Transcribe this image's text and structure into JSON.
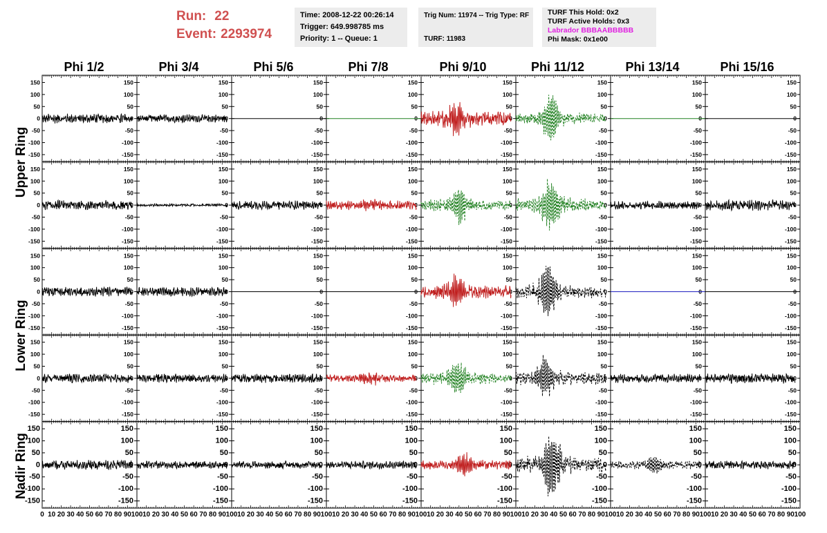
{
  "header": {
    "run_label": "Run:",
    "run_value": "22",
    "event_label": "Event:",
    "event_value": "2293974"
  },
  "info_boxes": [
    {
      "lines": [
        "Time: 2008-12-22 00:26:14",
        "Trigger: 649.998785 ms",
        "Priority: 1 -- Queue: 1"
      ]
    },
    {
      "lines": [
        "Trig Num: 11974 -- Trig Type: RF",
        "",
        "TURF: 11983"
      ]
    },
    {
      "lines": [
        "TURF This Hold: 0x2",
        "TURF Active Holds: 0x3",
        "Labrador BBBAABBBBB",
        "Phi Mask: 0x1e00"
      ]
    }
  ],
  "colors": {
    "title": "#d05050",
    "black": "#000000",
    "red": "#c02020",
    "green": "#208020",
    "blue": "#2020c0",
    "magenta": "#e020e0",
    "box_bg": "#ececec"
  },
  "columns": [
    "Phi 1/2",
    "Phi 3/4",
    "Phi 5/6",
    "Phi 7/8",
    "Phi 9/10",
    "Phi 11/12",
    "Phi 13/14",
    "Phi 15/16"
  ],
  "ring_labels": [
    {
      "text": "Upper Ring",
      "rows": [
        0,
        1
      ]
    },
    {
      "text": "Lower Ring",
      "rows": [
        2,
        3
      ]
    },
    {
      "text": "Nadir Ring",
      "rows": [
        4
      ]
    }
  ],
  "chart_data": {
    "type": "line",
    "xlabel": "",
    "ylabel": "",
    "xlim": [
      0,
      100
    ],
    "ylim": [
      -180,
      180
    ],
    "y_ticks": [
      150,
      100,
      50,
      0,
      -50,
      -100,
      -150
    ],
    "x_ticks": [
      0,
      10,
      20,
      30,
      40,
      50,
      60,
      70,
      80,
      90,
      100
    ],
    "x_tick_labels": [
      "0",
      "10",
      "20",
      "30",
      "40",
      "50",
      "60",
      "70",
      "80",
      "90",
      "100"
    ],
    "panels": [
      [
        {
          "color": "black",
          "style": "solid",
          "amp": 14,
          "flat": false
        },
        {
          "color": "black",
          "style": "solid",
          "amp": 12,
          "flat": false
        },
        {
          "color": "black",
          "style": "solid",
          "amp": 0,
          "flat": true
        },
        {
          "color": "green",
          "style": "solid",
          "amp": 0,
          "flat": true
        },
        {
          "color": "red",
          "style": "solid",
          "amp": 22,
          "pulse": 55,
          "center": 38,
          "flat": false
        },
        {
          "color": "green",
          "style": "dashed",
          "amp": 14,
          "pulse": 95,
          "center": 37,
          "flat": false
        },
        {
          "color": "green",
          "style": "solid",
          "amp": 0,
          "flat": true
        },
        {
          "color": "black",
          "style": "solid",
          "amp": 0,
          "flat": true
        }
      ],
      [
        {
          "color": "black",
          "style": "solid",
          "amp": 14,
          "flat": false
        },
        {
          "color": "black",
          "style": "solid",
          "amp": 4,
          "flat": false
        },
        {
          "color": "black",
          "style": "solid",
          "amp": 13,
          "flat": false
        },
        {
          "color": "red",
          "style": "solid",
          "amp": 13,
          "pulse": 12,
          "center": 45,
          "flat": false
        },
        {
          "color": "green",
          "style": "dashed",
          "amp": 15,
          "pulse": 65,
          "center": 40,
          "flat": false
        },
        {
          "color": "green",
          "style": "dashed",
          "amp": 18,
          "pulse": 95,
          "center": 37,
          "flat": false
        },
        {
          "color": "black",
          "style": "solid",
          "amp": 12,
          "flat": false
        },
        {
          "color": "black",
          "style": "solid",
          "amp": 16,
          "flat": false
        }
      ],
      [
        {
          "color": "black",
          "style": "solid",
          "amp": 14,
          "flat": false
        },
        {
          "color": "black",
          "style": "solid",
          "amp": 13,
          "flat": false
        },
        {
          "color": "black",
          "style": "solid",
          "amp": 0,
          "flat": true
        },
        {
          "color": "black",
          "style": "solid",
          "amp": 0,
          "flat": true
        },
        {
          "color": "red",
          "style": "solid",
          "amp": 18,
          "pulse": 55,
          "center": 38,
          "flat": false
        },
        {
          "color": "black",
          "style": "dashed",
          "amp": 18,
          "pulse": 95,
          "center": 34,
          "flat": false
        },
        {
          "color": "blue",
          "style": "solid",
          "amp": 0,
          "flat": true
        },
        {
          "color": "black",
          "style": "solid",
          "amp": 0,
          "flat": true
        }
      ],
      [
        {
          "color": "black",
          "style": "solid",
          "amp": 13,
          "flat": false
        },
        {
          "color": "black",
          "style": "solid",
          "amp": 13,
          "flat": false
        },
        {
          "color": "black",
          "style": "solid",
          "amp": 13,
          "flat": false
        },
        {
          "color": "red",
          "style": "solid",
          "amp": 12,
          "pulse": 20,
          "center": 45,
          "flat": false
        },
        {
          "color": "green",
          "style": "dashed",
          "amp": 15,
          "pulse": 65,
          "center": 38,
          "flat": false
        },
        {
          "color": "black",
          "style": "dashed",
          "amp": 18,
          "pulse": 70,
          "center": 32,
          "flat": false
        },
        {
          "color": "black",
          "style": "solid",
          "amp": 13,
          "flat": false
        },
        {
          "color": "black",
          "style": "solid",
          "amp": 15,
          "flat": false
        }
      ],
      [
        {
          "color": "black",
          "style": "solid",
          "amp": 14,
          "flat": false
        },
        {
          "color": "black",
          "style": "solid",
          "amp": 11,
          "flat": false
        },
        {
          "color": "black",
          "style": "solid",
          "amp": 11,
          "flat": false
        },
        {
          "color": "black",
          "style": "solid",
          "amp": 11,
          "flat": false
        },
        {
          "color": "red",
          "style": "solid",
          "amp": 14,
          "pulse": 45,
          "center": 45,
          "flat": false
        },
        {
          "color": "black",
          "style": "dashed",
          "amp": 20,
          "pulse": 125,
          "center": 38,
          "flat": false
        },
        {
          "color": "black",
          "style": "dashed",
          "amp": 12,
          "pulse": 30,
          "center": 45,
          "flat": false
        },
        {
          "color": "black",
          "style": "solid",
          "amp": 12,
          "flat": false
        }
      ]
    ]
  }
}
